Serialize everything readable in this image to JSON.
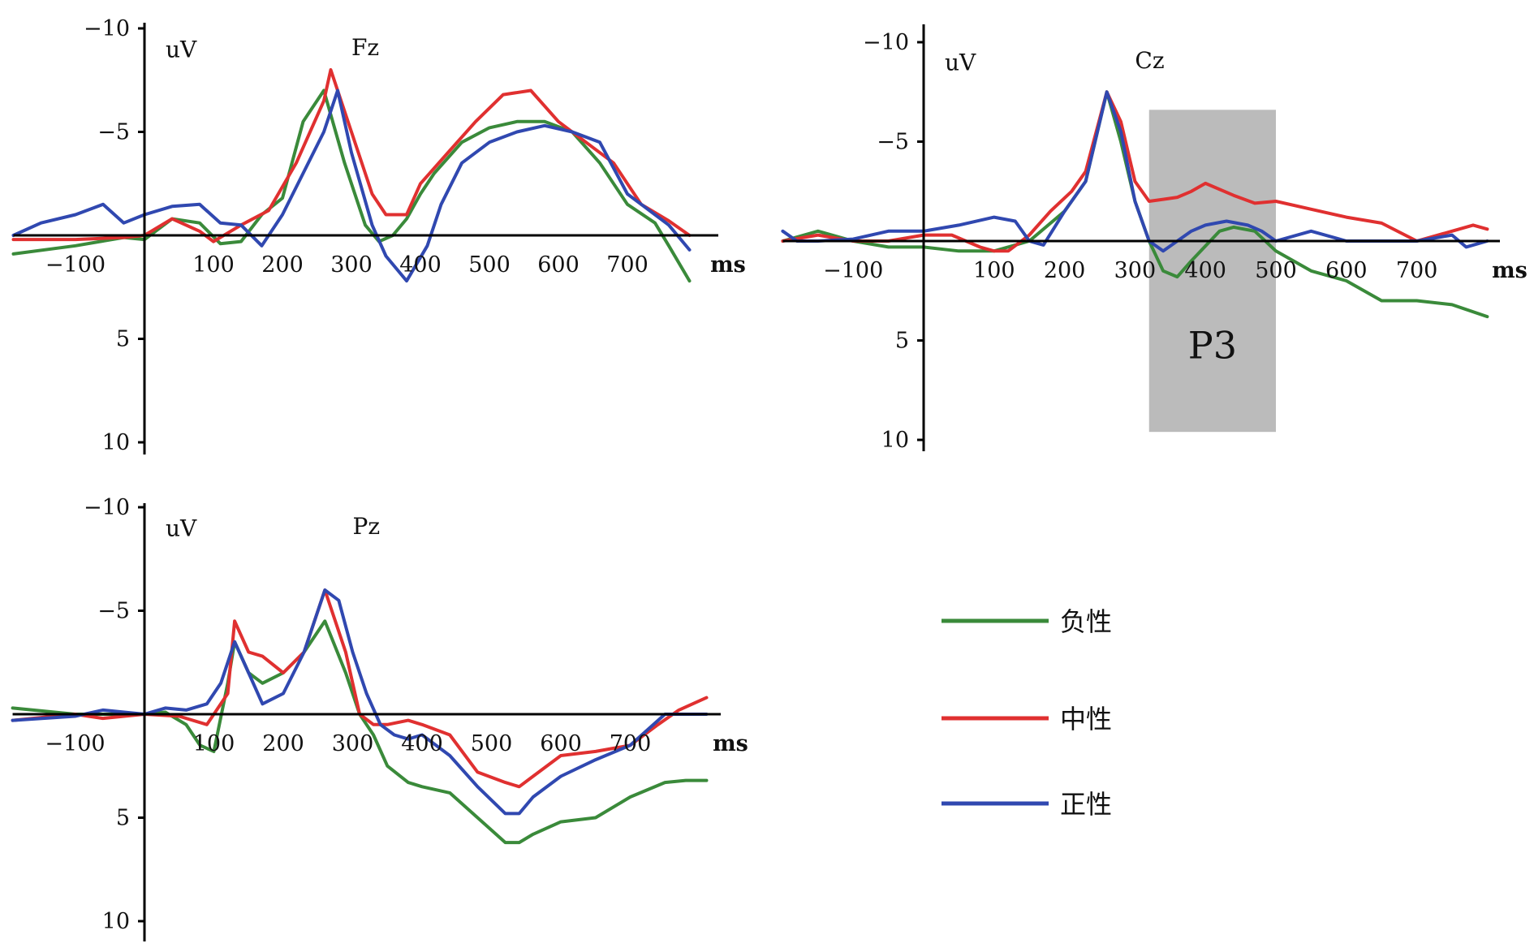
{
  "colors": {
    "negative": "#3a8a3a",
    "neutral": "#e03030",
    "positive": "#3048b0",
    "shade": "#bbbbbb"
  },
  "legend": [
    {
      "label": "负性",
      "series": "negative"
    },
    {
      "label": "中性",
      "series": "neutral"
    },
    {
      "label": "正性",
      "series": "positive"
    }
  ],
  "chart_data": [
    {
      "type": "line",
      "title": "Fz",
      "ylabel": "uV",
      "xlabel": "ms",
      "xlim": [
        -190,
        790
      ],
      "ylim": [
        -10,
        10
      ],
      "y_inverted": true,
      "x_ticks": [
        "−100",
        "100",
        "200",
        "300",
        "400",
        "500",
        "600",
        "700"
      ],
      "y_ticks": [
        "−10",
        "−5",
        "5",
        "10"
      ],
      "series": [
        {
          "name": "负性",
          "key": "negative",
          "x": [
            -190,
            -100,
            -30,
            0,
            40,
            80,
            110,
            140,
            170,
            200,
            230,
            260,
            290,
            320,
            340,
            360,
            380,
            400,
            420,
            460,
            500,
            540,
            580,
            620,
            660,
            700,
            740,
            760,
            790
          ],
          "y": [
            0.9,
            0.5,
            0.1,
            0.2,
            -0.8,
            -0.6,
            0.4,
            0.3,
            -1.0,
            -1.8,
            -5.5,
            -7.0,
            -3.5,
            -0.5,
            0.3,
            0.0,
            -0.8,
            -2.0,
            -3.0,
            -4.5,
            -5.2,
            -5.5,
            -5.5,
            -5.0,
            -3.5,
            -1.5,
            -0.6,
            0.5,
            2.2
          ]
        },
        {
          "name": "中性",
          "key": "neutral",
          "x": [
            -190,
            -100,
            -30,
            0,
            40,
            80,
            100,
            140,
            180,
            220,
            260,
            270,
            300,
            330,
            350,
            380,
            400,
            440,
            480,
            520,
            560,
            600,
            640,
            680,
            720,
            760,
            790
          ],
          "y": [
            0.2,
            0.2,
            0.1,
            0.0,
            -0.8,
            -0.2,
            0.3,
            -0.5,
            -1.2,
            -3.5,
            -6.5,
            -8.0,
            -5.0,
            -2.0,
            -1.0,
            -1.0,
            -2.5,
            -4.0,
            -5.5,
            -6.8,
            -7.0,
            -5.5,
            -4.5,
            -3.5,
            -1.5,
            -0.7,
            0.0
          ]
        },
        {
          "name": "正性",
          "key": "positive",
          "x": [
            -190,
            -150,
            -100,
            -60,
            -30,
            0,
            40,
            80,
            110,
            140,
            170,
            200,
            230,
            260,
            280,
            300,
            330,
            350,
            380,
            410,
            430,
            460,
            500,
            540,
            580,
            620,
            660,
            700,
            740,
            760,
            790
          ],
          "y": [
            0.0,
            -0.6,
            -1.0,
            -1.5,
            -0.6,
            -1.0,
            -1.4,
            -1.5,
            -0.6,
            -0.5,
            0.5,
            -1.0,
            -3.0,
            -5.0,
            -7.0,
            -4.0,
            -0.5,
            1.0,
            2.2,
            0.5,
            -1.5,
            -3.5,
            -4.5,
            -5.0,
            -5.3,
            -5.0,
            -4.5,
            -2.0,
            -1.0,
            -0.5,
            0.7
          ]
        }
      ]
    },
    {
      "type": "line",
      "title": "Cz",
      "ylabel": "uV",
      "xlabel": "ms",
      "xlim": [
        -200,
        800
      ],
      "ylim": [
        -10,
        10
      ],
      "y_inverted": true,
      "x_ticks": [
        "−100",
        "100",
        "200",
        "300",
        "400",
        "500",
        "600",
        "700"
      ],
      "y_ticks": [
        "−10",
        "−5",
        "5",
        "10"
      ],
      "series": [
        {
          "name": "负性",
          "key": "negative",
          "x": [
            -200,
            -150,
            -100,
            -50,
            0,
            50,
            100,
            150,
            200,
            230,
            260,
            280,
            300,
            320,
            340,
            360,
            380,
            420,
            440,
            470,
            500,
            550,
            600,
            650,
            700,
            750,
            800
          ],
          "y": [
            0.0,
            -0.5,
            0.0,
            0.3,
            0.3,
            0.5,
            0.5,
            0.0,
            -1.5,
            -3.0,
            -7.5,
            -5.0,
            -2.0,
            0.0,
            1.5,
            1.8,
            1.0,
            -0.5,
            -0.7,
            -0.5,
            0.5,
            1.5,
            2.0,
            3.0,
            3.0,
            3.2,
            3.8
          ]
        },
        {
          "name": "中性",
          "key": "neutral",
          "x": [
            -200,
            -150,
            -100,
            -50,
            0,
            40,
            80,
            100,
            120,
            150,
            180,
            210,
            230,
            260,
            280,
            300,
            320,
            340,
            360,
            380,
            400,
            440,
            470,
            500,
            550,
            600,
            650,
            700,
            750,
            780,
            800
          ],
          "y": [
            0.0,
            -0.3,
            0.0,
            0.0,
            -0.3,
            -0.3,
            0.3,
            0.5,
            0.5,
            -0.3,
            -1.5,
            -2.5,
            -3.5,
            -7.5,
            -6.0,
            -3.0,
            -2.0,
            -2.1,
            -2.2,
            -2.5,
            -2.9,
            -2.3,
            -1.9,
            -2.0,
            -1.6,
            -1.2,
            -0.9,
            0.0,
            -0.5,
            -0.8,
            -0.6
          ]
        },
        {
          "name": "正性",
          "key": "positive",
          "x": [
            -200,
            -180,
            -150,
            -100,
            -50,
            0,
            50,
            100,
            130,
            150,
            170,
            200,
            230,
            260,
            280,
            300,
            320,
            340,
            360,
            380,
            400,
            430,
            460,
            480,
            500,
            550,
            600,
            650,
            700,
            750,
            770,
            800
          ],
          "y": [
            -0.5,
            0.0,
            0.0,
            -0.1,
            -0.5,
            -0.5,
            -0.8,
            -1.2,
            -1.0,
            0.0,
            0.2,
            -1.5,
            -3.0,
            -7.5,
            -5.5,
            -2.0,
            0.0,
            0.5,
            0.0,
            -0.5,
            -0.8,
            -1.0,
            -0.8,
            -0.5,
            0.0,
            -0.5,
            0.0,
            0.0,
            0.0,
            -0.3,
            0.3,
            0.0
          ]
        }
      ]
    },
    {
      "type": "line",
      "title": "Pz",
      "ylabel": "uV",
      "xlabel": "ms",
      "xlim": [
        -190,
        810
      ],
      "ylim": [
        -10,
        10
      ],
      "y_inverted": true,
      "x_ticks": [
        "−100",
        "100",
        "200",
        "300",
        "400",
        "500",
        "600",
        "700"
      ],
      "y_ticks": [
        "−10",
        "−5",
        "5",
        "10"
      ],
      "series": [
        {
          "name": "负性",
          "key": "negative",
          "x": [
            -190,
            -100,
            -50,
            0,
            30,
            60,
            80,
            100,
            120,
            130,
            150,
            170,
            200,
            230,
            260,
            290,
            310,
            330,
            350,
            380,
            400,
            440,
            480,
            520,
            540,
            560,
            600,
            650,
            700,
            750,
            780,
            810
          ],
          "y": [
            -0.3,
            0.0,
            0.0,
            0.0,
            -0.1,
            0.5,
            1.5,
            1.8,
            -1.5,
            -3.5,
            -2.0,
            -1.5,
            -2.0,
            -3.0,
            -4.5,
            -2.0,
            0.0,
            1.0,
            2.5,
            3.3,
            3.5,
            3.8,
            5.0,
            6.2,
            6.2,
            5.8,
            5.2,
            5.0,
            4.0,
            3.3,
            3.2,
            3.2
          ]
        },
        {
          "name": "中性",
          "key": "neutral",
          "x": [
            -190,
            -100,
            -60,
            0,
            50,
            90,
            120,
            130,
            150,
            170,
            200,
            230,
            260,
            290,
            310,
            330,
            350,
            380,
            400,
            440,
            480,
            520,
            540,
            560,
            600,
            650,
            700,
            740,
            770,
            810
          ],
          "y": [
            0.3,
            0.0,
            0.2,
            0.0,
            0.1,
            0.5,
            -1.0,
            -4.5,
            -3.0,
            -2.8,
            -2.0,
            -3.0,
            -6.0,
            -3.0,
            0.0,
            0.5,
            0.5,
            0.3,
            0.5,
            1.0,
            2.8,
            3.3,
            3.5,
            3.0,
            2.0,
            1.8,
            1.5,
            0.5,
            -0.2,
            -0.8
          ]
        },
        {
          "name": "正性",
          "key": "positive",
          "x": [
            -190,
            -100,
            -60,
            0,
            30,
            60,
            90,
            110,
            130,
            150,
            170,
            200,
            230,
            260,
            280,
            300,
            320,
            340,
            360,
            380,
            400,
            440,
            480,
            520,
            540,
            560,
            600,
            650,
            700,
            750,
            780,
            810
          ],
          "y": [
            0.3,
            0.1,
            -0.2,
            0.0,
            -0.3,
            -0.2,
            -0.5,
            -1.5,
            -3.5,
            -2.0,
            -0.5,
            -1.0,
            -3.0,
            -6.0,
            -5.5,
            -3.0,
            -1.0,
            0.5,
            1.0,
            1.2,
            1.0,
            2.0,
            3.5,
            4.8,
            4.8,
            4.0,
            3.0,
            2.2,
            1.5,
            0.0,
            0.0,
            0.0
          ]
        }
      ]
    }
  ],
  "annotation": {
    "label": "P3",
    "panel": 1,
    "x_range": [
      320,
      500
    ]
  }
}
